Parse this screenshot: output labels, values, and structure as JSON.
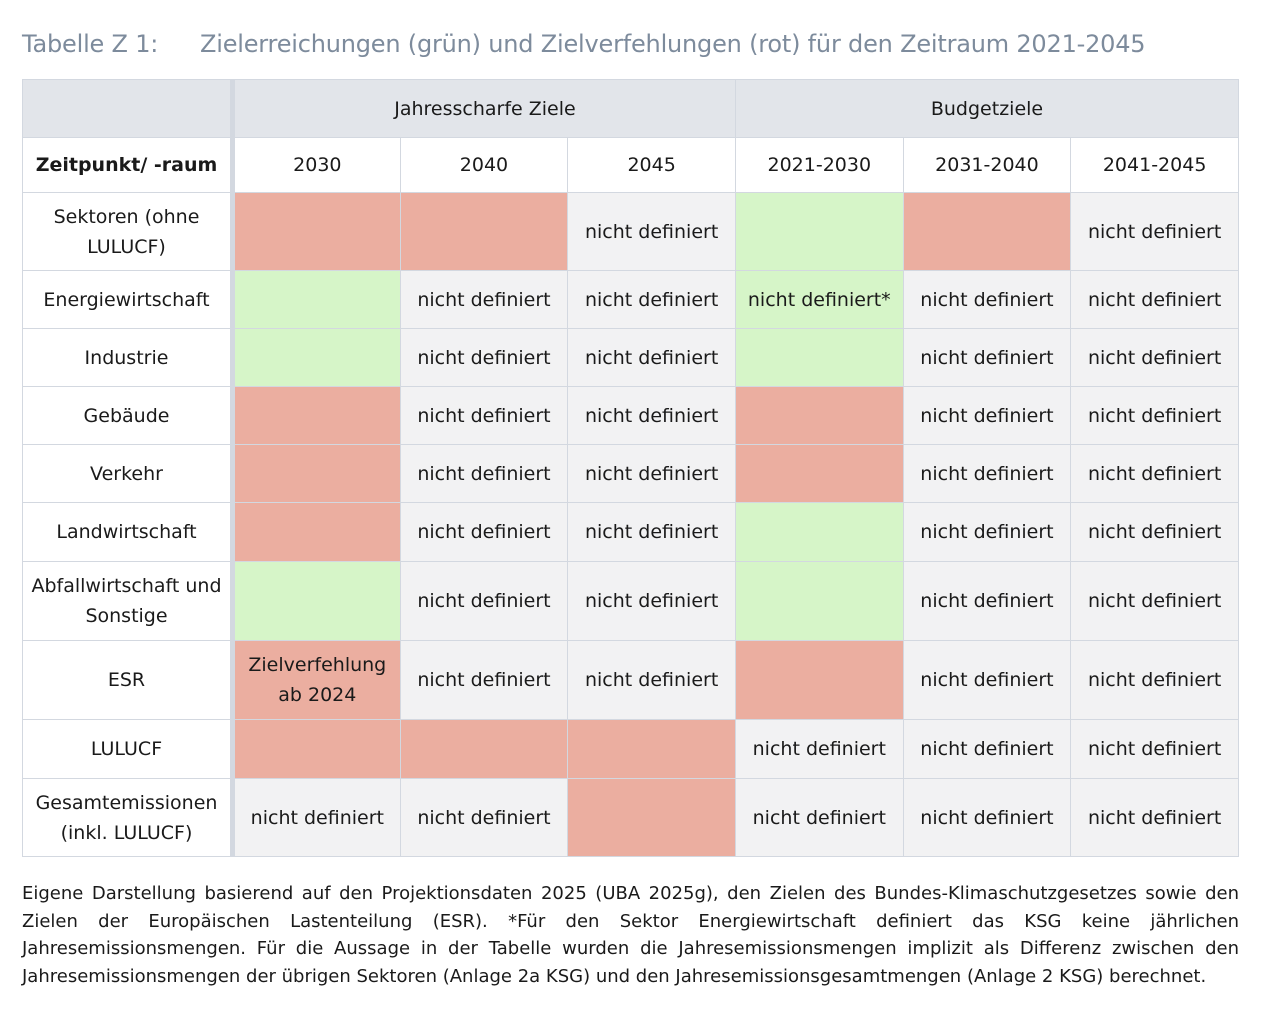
{
  "caption": {
    "number": "Tabelle Z 1:",
    "title": "Zielerreichungen (grün) und Zielverfehlungen (rot) für den Zeitraum 2021-2045"
  },
  "colors": {
    "green": "#d6f5c8",
    "red": "#ebaea0",
    "neutral": "#f2f2f3",
    "header": "#e2e5ea",
    "border": "#d3d8e0"
  },
  "table": {
    "group_headers": [
      "Jahresscharfe Ziele",
      "Budgetziele"
    ],
    "header_label": "Zeitpunkt/ -raum",
    "columns": [
      "2030",
      "2040",
      "2045",
      "2021-2030",
      "2031-2040",
      "2041-2045"
    ],
    "rows": [
      {
        "label": "Sektoren (ohne LULUCF)",
        "cells": [
          {
            "s": "r",
            "t": ""
          },
          {
            "s": "r",
            "t": ""
          },
          {
            "s": "n",
            "t": "nicht definiert"
          },
          {
            "s": "g",
            "t": ""
          },
          {
            "s": "r",
            "t": ""
          },
          {
            "s": "n",
            "t": "nicht definiert"
          }
        ]
      },
      {
        "label": "Energiewirtschaft",
        "cells": [
          {
            "s": "g",
            "t": ""
          },
          {
            "s": "n",
            "t": "nicht definiert"
          },
          {
            "s": "n",
            "t": "nicht definiert"
          },
          {
            "s": "g",
            "t": "nicht definiert*"
          },
          {
            "s": "n",
            "t": "nicht definiert"
          },
          {
            "s": "n",
            "t": "nicht definiert"
          }
        ]
      },
      {
        "label": "Industrie",
        "cells": [
          {
            "s": "g",
            "t": ""
          },
          {
            "s": "n",
            "t": "nicht definiert"
          },
          {
            "s": "n",
            "t": "nicht definiert"
          },
          {
            "s": "g",
            "t": ""
          },
          {
            "s": "n",
            "t": "nicht definiert"
          },
          {
            "s": "n",
            "t": "nicht definiert"
          }
        ]
      },
      {
        "label": "Gebäude",
        "cells": [
          {
            "s": "r",
            "t": ""
          },
          {
            "s": "n",
            "t": "nicht definiert"
          },
          {
            "s": "n",
            "t": "nicht definiert"
          },
          {
            "s": "r",
            "t": ""
          },
          {
            "s": "n",
            "t": "nicht definiert"
          },
          {
            "s": "n",
            "t": "nicht definiert"
          }
        ]
      },
      {
        "label": "Verkehr",
        "cells": [
          {
            "s": "r",
            "t": ""
          },
          {
            "s": "n",
            "t": "nicht definiert"
          },
          {
            "s": "n",
            "t": "nicht definiert"
          },
          {
            "s": "r",
            "t": ""
          },
          {
            "s": "n",
            "t": "nicht definiert"
          },
          {
            "s": "n",
            "t": "nicht definiert"
          }
        ]
      },
      {
        "label": "Landwirtschaft",
        "cells": [
          {
            "s": "r",
            "t": ""
          },
          {
            "s": "n",
            "t": "nicht definiert"
          },
          {
            "s": "n",
            "t": "nicht definiert"
          },
          {
            "s": "g",
            "t": ""
          },
          {
            "s": "n",
            "t": "nicht definiert"
          },
          {
            "s": "n",
            "t": "nicht definiert"
          }
        ]
      },
      {
        "label": "Abfallwirtschaft und Sonstige",
        "cells": [
          {
            "s": "g",
            "t": ""
          },
          {
            "s": "n",
            "t": "nicht definiert"
          },
          {
            "s": "n",
            "t": "nicht definiert"
          },
          {
            "s": "g",
            "t": ""
          },
          {
            "s": "n",
            "t": "nicht definiert"
          },
          {
            "s": "n",
            "t": "nicht definiert"
          }
        ]
      },
      {
        "label": "ESR",
        "cells": [
          {
            "s": "r",
            "t": "Zielverfehlung ab 2024"
          },
          {
            "s": "n",
            "t": "nicht definiert"
          },
          {
            "s": "n",
            "t": "nicht definiert"
          },
          {
            "s": "r",
            "t": ""
          },
          {
            "s": "n",
            "t": "nicht definiert"
          },
          {
            "s": "n",
            "t": "nicht definiert"
          }
        ]
      },
      {
        "label": "LULUCF",
        "cells": [
          {
            "s": "r",
            "t": ""
          },
          {
            "s": "r",
            "t": ""
          },
          {
            "s": "r",
            "t": ""
          },
          {
            "s": "n",
            "t": "nicht definiert"
          },
          {
            "s": "n",
            "t": "nicht definiert"
          },
          {
            "s": "n",
            "t": "nicht definiert"
          }
        ]
      },
      {
        "label": "Gesamtemissionen (inkl. LULUCF)",
        "cells": [
          {
            "s": "n",
            "t": "nicht definiert"
          },
          {
            "s": "n",
            "t": "nicht definiert"
          },
          {
            "s": "r",
            "t": ""
          },
          {
            "s": "n",
            "t": "nicht definiert"
          },
          {
            "s": "n",
            "t": "nicht definiert"
          },
          {
            "s": "n",
            "t": "nicht definiert"
          }
        ]
      }
    ]
  },
  "footnote": "Eigene Darstellung basierend auf den Projektionsdaten 2025 (UBA 2025g), den Zielen des Bundes-Klimaschutzgesetzes sowie den Zielen der Europäischen Lastenteilung (ESR). *Für den Sektor Energiewirtschaft definiert das KSG keine jährlichen Jahresemissionsmengen. Für die Aussage in der Tabelle wurden die Jahresemissionsmengen implizit als Differenz zwischen den Jahresemissionsmengen der übrigen Sektoren (Anlage 2a KSG) und den Jahresemissionsgesamtmengen (Anlage 2 KSG) berechnet."
}
